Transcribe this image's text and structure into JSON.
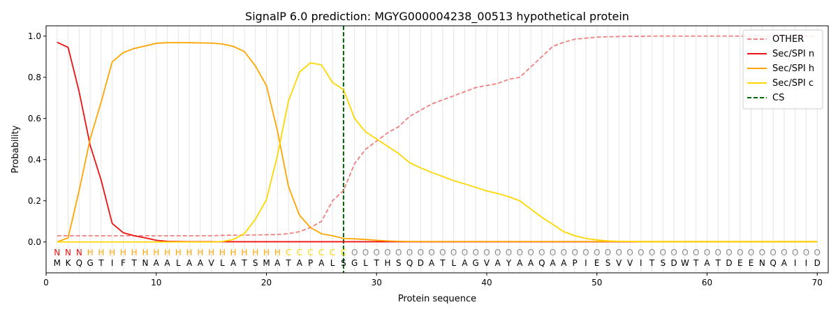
{
  "chart_data": {
    "type": "line",
    "title": "SignalP 6.0 prediction: MGYG000004238_00513 hypothetical protein",
    "xlabel": "Protein sequence",
    "ylabel": "Probability",
    "xlim": [
      0,
      71
    ],
    "ylim": [
      -0.15,
      1.05
    ],
    "x_ticks": [
      0,
      10,
      20,
      30,
      40,
      50,
      60,
      70
    ],
    "y_ticks": [
      0.0,
      0.2,
      0.4,
      0.6,
      0.8,
      1.0
    ],
    "x_tick_labels": [
      "0",
      "10",
      "20",
      "30",
      "40",
      "50",
      "60",
      "70"
    ],
    "y_tick_labels": [
      "0.0",
      "0.2",
      "0.4",
      "0.6",
      "0.8",
      "1.0"
    ],
    "grid": "vertical lines at every residue",
    "legend_position": "top-right",
    "cleavage_site": 27,
    "sequence": [
      "M",
      "K",
      "Q",
      "G",
      "T",
      "I",
      "F",
      "T",
      "N",
      "A",
      "A",
      "L",
      "A",
      "A",
      "V",
      "L",
      "A",
      "T",
      "S",
      "M",
      "A",
      "T",
      "A",
      "P",
      "A",
      "L",
      "S",
      "G",
      "L",
      "T",
      "H",
      "S",
      "Q",
      "D",
      "A",
      "T",
      "L",
      "A",
      "G",
      "V",
      "A",
      "Y",
      "A",
      "A",
      "Q",
      "A",
      "A",
      "P",
      "I",
      "E",
      "S",
      "V",
      "V",
      "I",
      "T",
      "S",
      "D",
      "W",
      "T",
      "A",
      "T",
      "D",
      "E",
      "E",
      "N",
      "Q",
      "A",
      "I",
      "I",
      "D"
    ],
    "region_labels": [
      "N",
      "N",
      "N",
      "H",
      "H",
      "H",
      "H",
      "H",
      "H",
      "H",
      "H",
      "H",
      "H",
      "H",
      "H",
      "H",
      "H",
      "H",
      "H",
      "H",
      "H",
      "C",
      "C",
      "C",
      "C",
      "C",
      "C",
      "O",
      "O",
      "O",
      "O",
      "O",
      "O",
      "O",
      "O",
      "O",
      "O",
      "O",
      "O",
      "O",
      "O",
      "O",
      "O",
      "O",
      "O",
      "O",
      "O",
      "O",
      "O",
      "O",
      "O",
      "O",
      "O",
      "O",
      "O",
      "O",
      "O",
      "O",
      "O",
      "O",
      "O",
      "O",
      "O",
      "O",
      "O",
      "O",
      "O",
      "O",
      "O",
      "O"
    ],
    "region_colors": {
      "N": "#ee1111",
      "H": "#ffa500",
      "C": "#ffd700",
      "O": "#888888"
    },
    "series": [
      {
        "name": "OTHER",
        "color": "#f08080",
        "dash": true,
        "values": [
          0.03,
          0.03,
          0.03,
          0.03,
          0.03,
          0.03,
          0.03,
          0.03,
          0.03,
          0.03,
          0.03,
          0.03,
          0.03,
          0.03,
          0.03,
          0.032,
          0.033,
          0.033,
          0.034,
          0.035,
          0.036,
          0.04,
          0.05,
          0.07,
          0.1,
          0.2,
          0.25,
          0.38,
          0.45,
          0.49,
          0.53,
          0.56,
          0.61,
          0.64,
          0.67,
          0.69,
          0.71,
          0.73,
          0.75,
          0.76,
          0.77,
          0.79,
          0.8,
          0.85,
          0.9,
          0.95,
          0.97,
          0.985,
          0.99,
          0.995,
          0.997,
          0.998,
          0.999,
          0.999,
          1.0,
          1.0,
          1.0,
          1.0,
          1.0,
          1.0,
          1.0,
          1.0,
          1.0,
          1.0,
          1.0,
          1.0,
          1.0,
          1.0,
          1.0,
          1.0
        ]
      },
      {
        "name": "Sec/SPI n",
        "color": "#ee1111",
        "dash": false,
        "values": [
          0.97,
          0.945,
          0.73,
          0.47,
          0.3,
          0.09,
          0.045,
          0.03,
          0.02,
          0.008,
          0.003,
          0.002,
          0.001,
          0.001,
          0.001,
          0.001,
          0.001,
          0.001,
          0.001,
          0.001,
          0.001,
          0.001,
          0.001,
          0.001,
          0.001,
          0.001,
          0.001,
          0.001,
          0.001,
          0.001,
          0.001,
          0.001,
          0.001,
          0.001,
          0.001,
          0.001,
          0.001,
          0.001,
          0.001,
          0.001,
          0.001,
          0.001,
          0.001,
          0.001,
          0.001,
          0.001,
          0.001,
          0.001,
          0.001,
          0.001,
          0.001,
          0.001,
          0.001,
          0.001,
          0.001,
          0.001,
          0.001,
          0.001,
          0.001,
          0.001,
          0.001,
          0.001,
          0.001,
          0.001,
          0.001,
          0.001,
          0.001,
          0.001,
          0.001,
          0.001
        ]
      },
      {
        "name": "Sec/SPI h",
        "color": "#ffa500",
        "dash": false,
        "values": [
          0.0,
          0.02,
          0.25,
          0.5,
          0.68,
          0.875,
          0.92,
          0.94,
          0.952,
          0.965,
          0.968,
          0.968,
          0.968,
          0.967,
          0.966,
          0.962,
          0.95,
          0.925,
          0.855,
          0.76,
          0.54,
          0.27,
          0.13,
          0.07,
          0.04,
          0.03,
          0.017,
          0.015,
          0.012,
          0.008,
          0.005,
          0.003,
          0.002,
          0.002,
          0.002,
          0.002,
          0.002,
          0.002,
          0.002,
          0.002,
          0.002,
          0.002,
          0.002,
          0.002,
          0.002,
          0.002,
          0.002,
          0.002,
          0.002,
          0.002,
          0.002,
          0.002,
          0.002,
          0.002,
          0.002,
          0.002,
          0.002,
          0.002,
          0.002,
          0.002,
          0.002,
          0.002,
          0.002,
          0.002,
          0.002,
          0.002,
          0.002,
          0.002,
          0.002,
          0.002
        ]
      },
      {
        "name": "Sec/SPI c",
        "color": "#ffd700",
        "dash": false,
        "values": [
          0.0,
          0.0,
          0.0,
          0.0,
          0.0,
          0.0,
          0.0,
          0.0,
          0.0,
          0.0,
          0.0,
          0.0,
          0.0,
          0.0,
          0.0,
          0.002,
          0.012,
          0.04,
          0.11,
          0.205,
          0.42,
          0.685,
          0.825,
          0.87,
          0.86,
          0.775,
          0.74,
          0.6,
          0.535,
          0.5,
          0.465,
          0.43,
          0.385,
          0.36,
          0.338,
          0.318,
          0.298,
          0.282,
          0.265,
          0.248,
          0.235,
          0.22,
          0.2,
          0.16,
          0.12,
          0.085,
          0.05,
          0.03,
          0.017,
          0.01,
          0.005,
          0.003,
          0.002,
          0.001,
          0.001,
          0.001,
          0.001,
          0.001,
          0.001,
          0.001,
          0.001,
          0.001,
          0.001,
          0.001,
          0.001,
          0.001,
          0.001,
          0.001,
          0.001,
          0.001
        ]
      },
      {
        "name": "CS",
        "color": "#006400",
        "dash": true,
        "values": []
      }
    ]
  }
}
